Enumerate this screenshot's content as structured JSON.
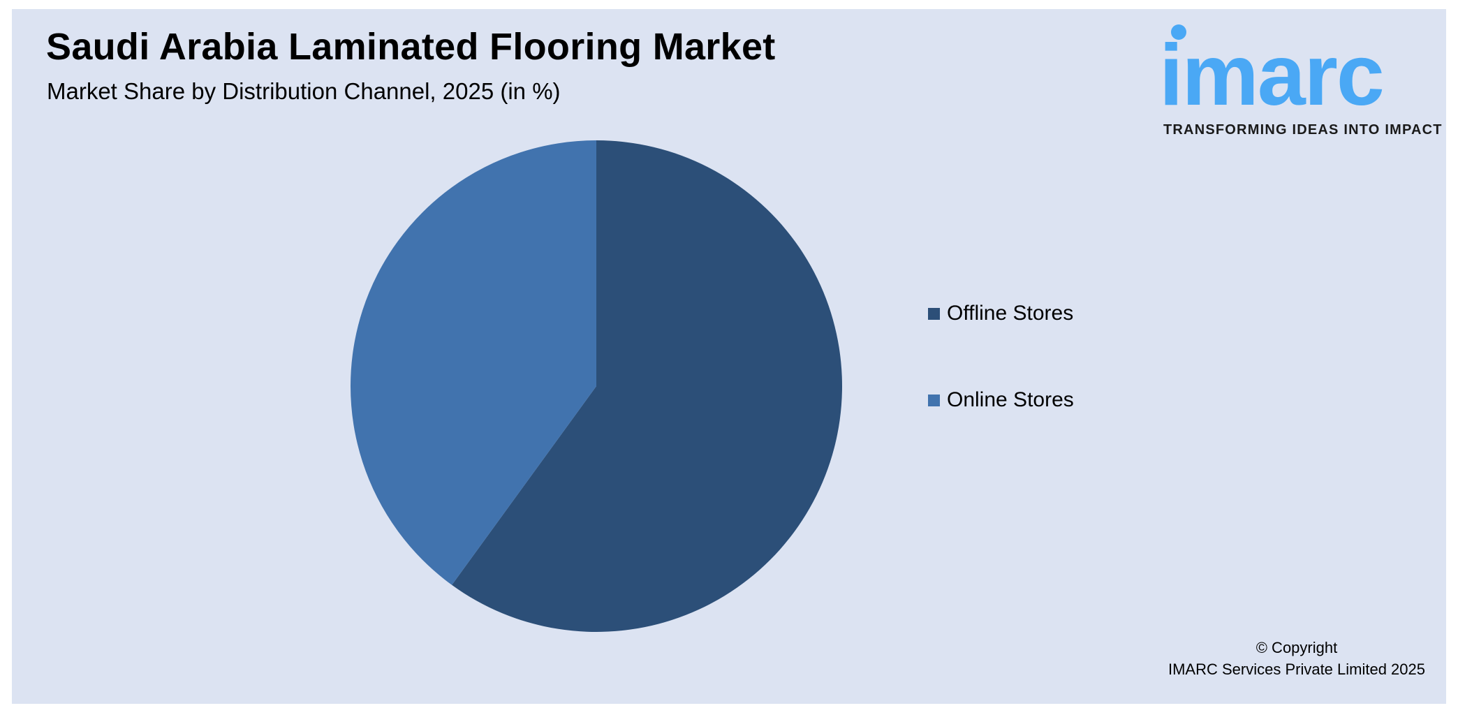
{
  "title": "Saudi Arabia Laminated Flooring Market",
  "subtitle": "Market Share by Distribution Channel, 2025 (in %)",
  "logo": {
    "text": "imarc",
    "tagline": "TRANSFORMING IDEAS INTO IMPACT",
    "color": "#4aa8f5"
  },
  "copyright": {
    "line1": "© Copyright",
    "line2": "IMARC Services Private Limited 2025"
  },
  "chart_data": {
    "type": "pie",
    "title": "Saudi Arabia Laminated Flooring Market",
    "subtitle": "Market Share by Distribution Channel, 2025 (in %)",
    "categories": [
      "Offline Stores",
      "Online Stores"
    ],
    "values": [
      60,
      40
    ],
    "colors": [
      "#2c4f78",
      "#4173ae"
    ],
    "start_angle": "12 o'clock, clockwise",
    "legend": "right"
  }
}
